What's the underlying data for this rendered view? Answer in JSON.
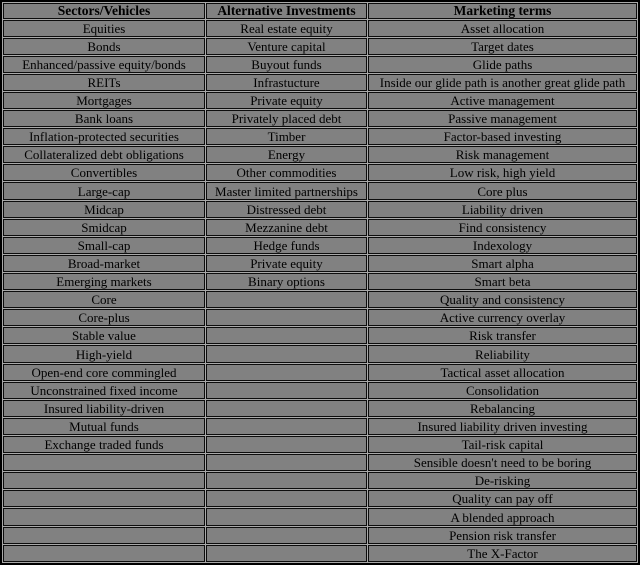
{
  "style": {
    "cell_background": "#818181",
    "grid_gap_color": "#a9a9a9",
    "border_color": "#000000",
    "text_color": "#000000"
  },
  "chart_data": {
    "type": "table",
    "title": "",
    "columns": [
      {
        "header": "Sectors/Vehicles",
        "rows": [
          "Equities",
          "Bonds",
          "Enhanced/passive equity/bonds",
          "REITs",
          "Mortgages",
          "Bank loans",
          "Inflation-protected securities",
          "Collateralized debt obligations",
          "Convertibles",
          "Large-cap",
          "Midcap",
          "Smidcap",
          "Small-cap",
          "Broad-market",
          "Emerging markets",
          "Core",
          "Core-plus",
          "Stable value",
          "High-yield",
          "Open-end core commingled",
          "Unconstrained fixed income",
          "Insured liability-driven",
          "Mutual funds",
          "Exchange traded funds",
          "",
          "",
          "",
          "",
          "",
          ""
        ]
      },
      {
        "header": "Alternative Investments",
        "rows": [
          "Real estate equity",
          "Venture capital",
          "Buyout funds",
          "Infrastucture",
          "Private equity",
          "Privately placed debt",
          "Timber",
          "Energy",
          "Other commodities",
          "Master limited partnerships",
          "Distressed debt",
          "Mezzanine debt",
          "Hedge funds",
          "Private equity",
          "Binary options",
          "",
          "",
          "",
          "",
          "",
          "",
          "",
          "",
          "",
          "",
          "",
          "",
          "",
          "",
          ""
        ]
      },
      {
        "header": "Marketing terms",
        "rows": [
          "Asset allocation",
          "Target dates",
          "Glide paths",
          "Inside our glide path is another great glide path",
          "Active management",
          "Passive management",
          "Factor-based investing",
          "Risk management",
          "Low risk, high yield",
          "Core plus",
          "Liability driven",
          "Find consistency",
          "Indexology",
          "Smart alpha",
          "Smart beta",
          "Quality and consistency",
          "Active currency overlay",
          "Risk transfer",
          "Reliability",
          "Tactical asset allocation",
          "Consolidation",
          "Rebalancing",
          "Insured liability driven investing",
          "Tail-risk capital",
          "Sensible doesn't need to be boring",
          "De-risking",
          "Quality can pay off",
          "A blended approach",
          "Pension risk transfer",
          "The X-Factor"
        ]
      }
    ]
  }
}
